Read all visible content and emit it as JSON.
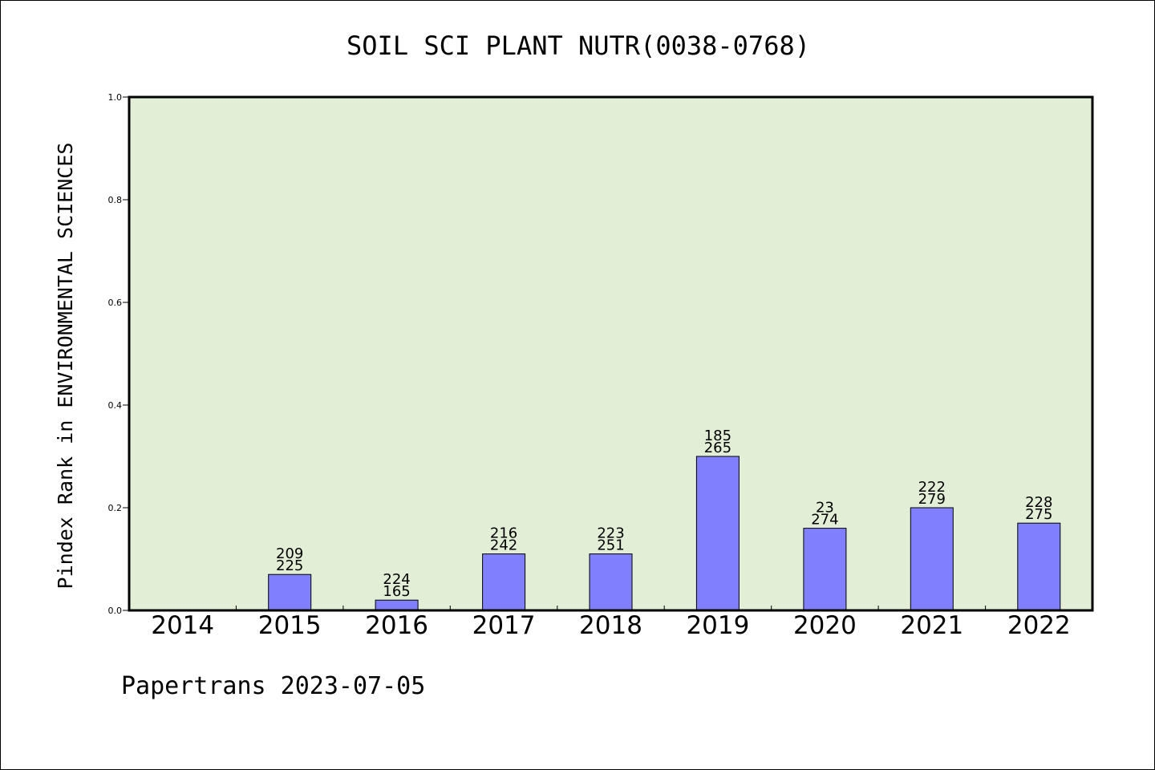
{
  "footer": "Papertrans 2023-07-05",
  "colors": {
    "plot_background": "#e2efd6",
    "bar_fill": "#8080ff",
    "bar_stroke": "#000000",
    "axis": "#000000"
  },
  "chart_data": {
    "type": "bar",
    "title": "SOIL SCI PLANT NUTR(0038-0768)",
    "xlabel": "",
    "ylabel": "Pindex Rank in ENVIRONMENTAL SCIENCES",
    "ylim": [
      0,
      1.0
    ],
    "yticks": [
      "0.0",
      "0.2",
      "0.4",
      "0.6",
      "0.8",
      "1.0"
    ],
    "grid": false,
    "categories": [
      "2014",
      "2015",
      "2016",
      "2017",
      "2018",
      "2019",
      "2020",
      "2021",
      "2022"
    ],
    "values": [
      0,
      0.07,
      0.02,
      0.11,
      0.11,
      0.3,
      0.16,
      0.2,
      0.17
    ],
    "label_top": [
      "",
      "209",
      "224",
      "216",
      "223",
      "185",
      "23",
      "222",
      "228"
    ],
    "label_bottom": [
      "",
      "225",
      "165",
      "242",
      "251",
      "265",
      "274",
      "279",
      "275"
    ]
  }
}
